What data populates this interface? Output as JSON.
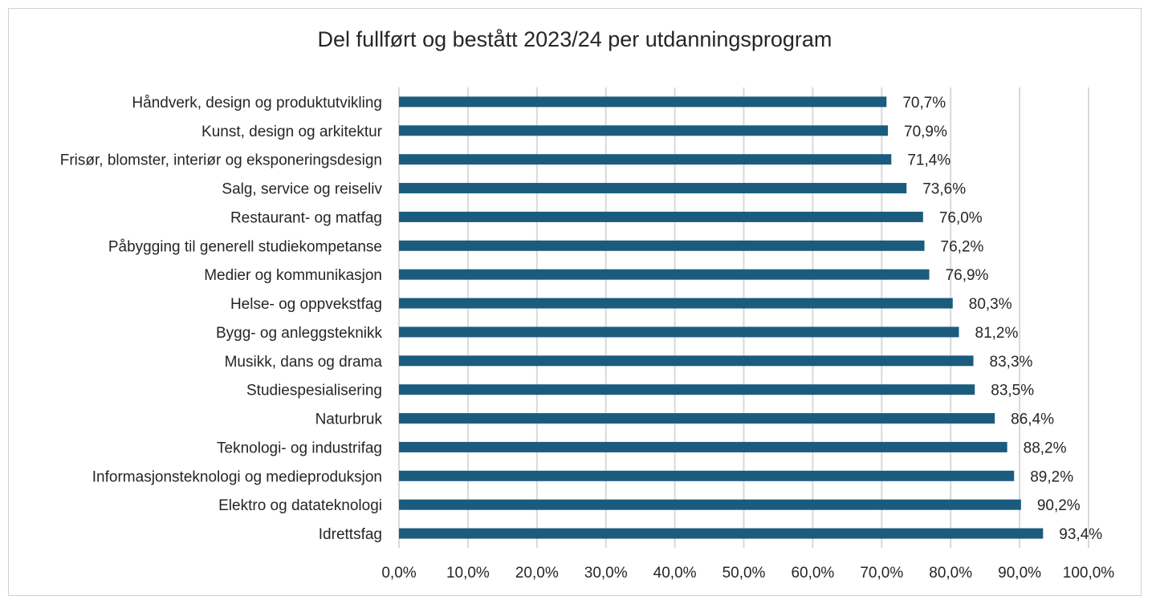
{
  "chart_data": {
    "type": "bar",
    "orientation": "horizontal",
    "title": "Del fullført og bestått 2023/24 per utdanningsprogram",
    "categories": [
      "Håndverk, design og produktutvikling",
      "Kunst, design og arkitektur",
      "Frisør, blomster, interiør og eksponeringsdesign",
      "Salg, service og reiseliv",
      "Restaurant- og matfag",
      "Påbygging til generell studiekompetanse",
      "Medier og kommunikasjon",
      "Helse- og oppvekstfag",
      "Bygg- og anleggsteknikk",
      "Musikk, dans og drama",
      "Studiespesialisering",
      "Naturbruk",
      "Teknologi- og industrifag",
      "Informasjonsteknologi og medieproduksjon",
      "Elektro og datateknologi",
      "Idrettsfag"
    ],
    "values": [
      70.7,
      70.9,
      71.4,
      73.6,
      76.0,
      76.2,
      76.9,
      80.3,
      81.2,
      83.3,
      83.5,
      86.4,
      88.2,
      89.2,
      90.2,
      93.4
    ],
    "value_labels": [
      "70,7%",
      "70,9%",
      "71,4%",
      "73,6%",
      "76,0%",
      "76,2%",
      "76,9%",
      "80,3%",
      "81,2%",
      "83,3%",
      "83,5%",
      "86,4%",
      "88,2%",
      "89,2%",
      "90,2%",
      "93,4%"
    ],
    "xlim": [
      0,
      100
    ],
    "xticks": [
      0,
      10,
      20,
      30,
      40,
      50,
      60,
      70,
      80,
      90,
      100
    ],
    "xtick_labels": [
      "0,0%",
      "10,0%",
      "20,0%",
      "30,0%",
      "40,0%",
      "50,0%",
      "60,0%",
      "70,0%",
      "80,0%",
      "90,0%",
      "100,0%"
    ],
    "xlabel": "",
    "ylabel": "",
    "grid": true,
    "legend": "none",
    "colors": {
      "bar": "#1b5c7e",
      "grid": "#d9d9d9",
      "text": "#262626"
    }
  }
}
